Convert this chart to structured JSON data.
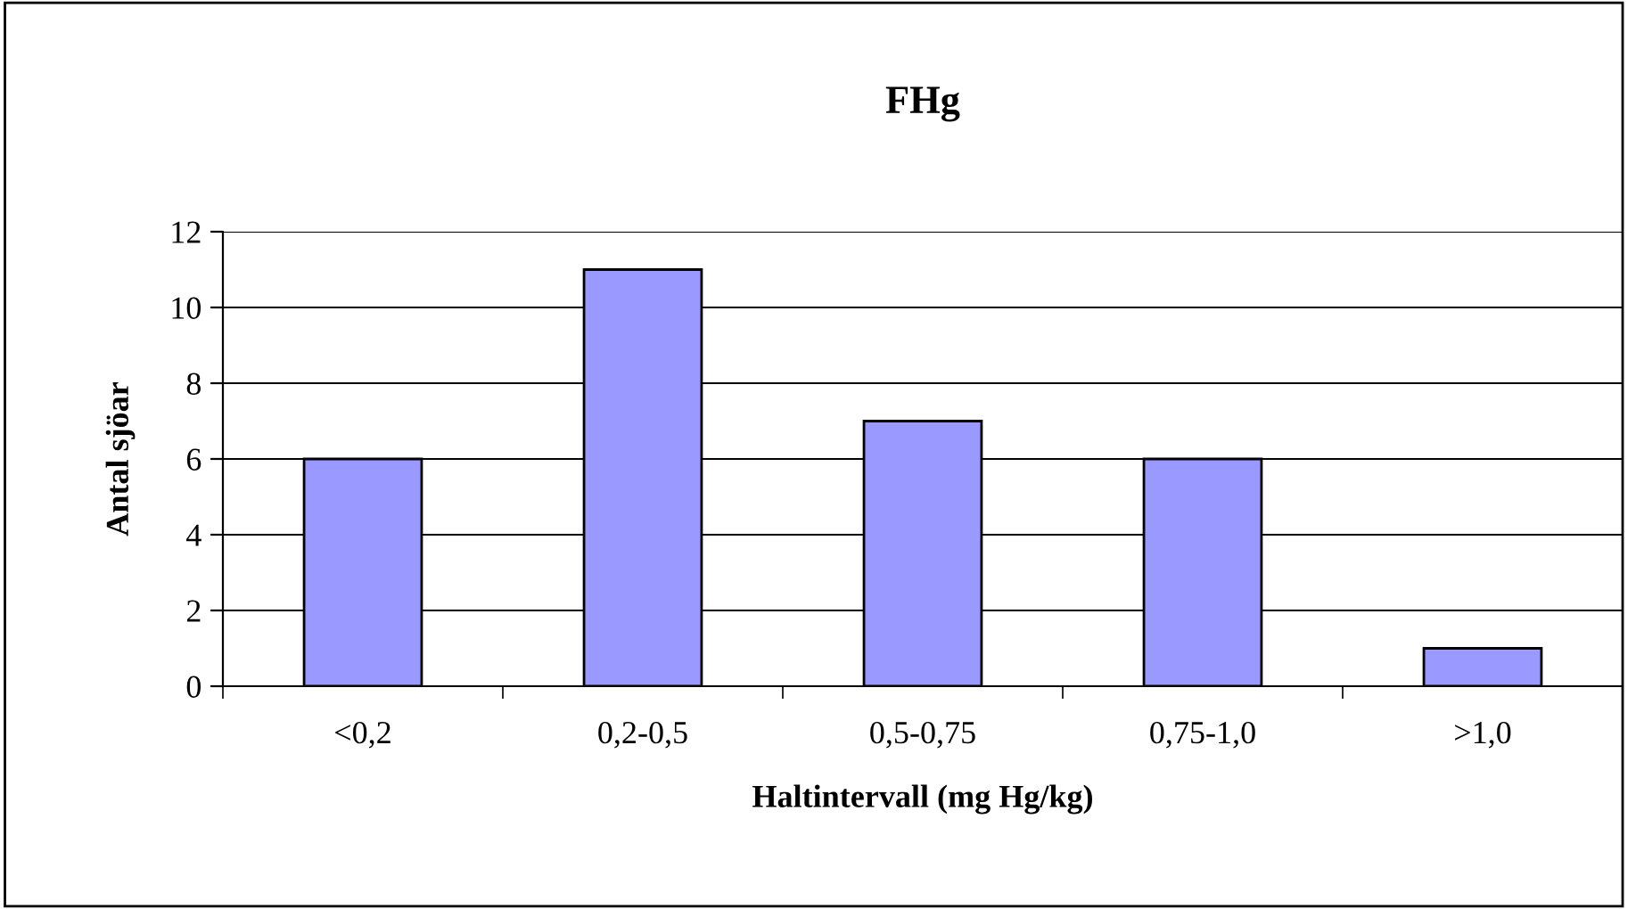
{
  "chart_data": {
    "type": "bar",
    "title": "FHg",
    "xlabel": "Haltintervall (mg Hg/kg)",
    "ylabel": "Antal sjöar",
    "categories": [
      "<0,2",
      "0,2-0,5",
      "0,5-0,75",
      "0,75-1,0",
      ">1,0"
    ],
    "values": [
      6,
      11,
      7,
      6,
      1
    ],
    "color": "#9999ff",
    "ylim": [
      0,
      12
    ],
    "yticks": [
      0,
      2,
      4,
      6,
      8,
      10,
      12
    ],
    "grid": "y",
    "legend": false
  }
}
